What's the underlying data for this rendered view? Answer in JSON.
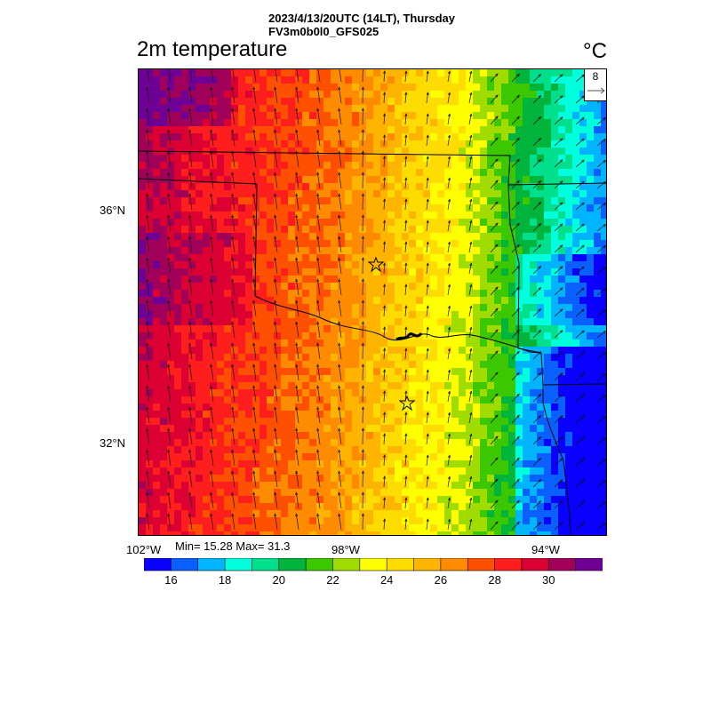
{
  "header": {
    "line1": "2023/4/13/20UTC (14LT), Thursday",
    "line2": "FV3m0b0l0_GFS025"
  },
  "variable": {
    "name": "2m temperature",
    "unit": "°C"
  },
  "reference_vector": {
    "value": "8"
  },
  "axes": {
    "lat_labels": [
      "36°N",
      "32°N"
    ],
    "lon_labels": [
      "102°W",
      "98°W",
      "94°W"
    ]
  },
  "stats": {
    "text": "Min= 15.28 Max= 31.3",
    "min": 15.28,
    "max": 31.3
  },
  "colorbar": {
    "colors": [
      "#0a00ff",
      "#0a5fff",
      "#00b4ff",
      "#00ffdc",
      "#00e08c",
      "#00b43c",
      "#3cc800",
      "#a0dc00",
      "#ffff00",
      "#ffdc00",
      "#ffb400",
      "#ff8c00",
      "#ff5000",
      "#ff1e1e",
      "#dc0032",
      "#a0005a",
      "#6e0096"
    ],
    "labels": [
      "16",
      "18",
      "20",
      "22",
      "24",
      "26",
      "28",
      "30"
    ]
  },
  "map_data": {
    "field": "2m temperature",
    "stars": 2,
    "temperature_range": [
      15.28,
      31.3
    ]
  }
}
